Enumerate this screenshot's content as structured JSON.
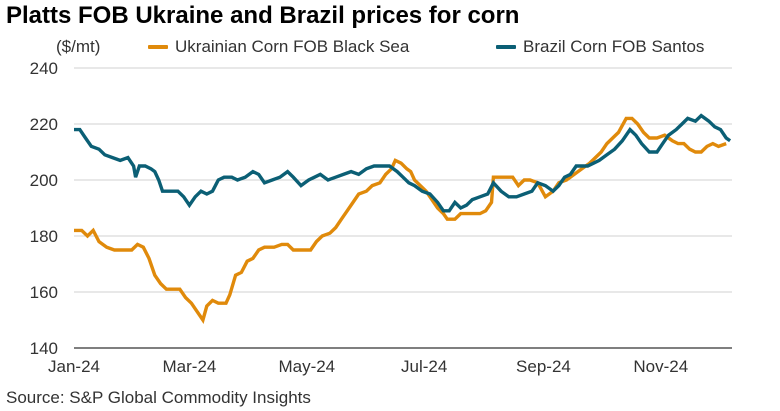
{
  "chart_data": {
    "type": "line",
    "title": "Platts FOB Ukraine and Brazil prices for corn",
    "ylabel": "($/mt)",
    "source": "Source: S&P Global Commodity Insights",
    "ylim": [
      140,
      240
    ],
    "yticks": [
      140,
      160,
      180,
      200,
      220,
      240
    ],
    "xlim": [
      "2024-01-01",
      "2024-12-08"
    ],
    "xticks": [
      {
        "date": "2024-01-01",
        "label": "Jan-24"
      },
      {
        "date": "2024-03-01",
        "label": "Mar-24"
      },
      {
        "date": "2024-05-01",
        "label": "May-24"
      },
      {
        "date": "2024-07-01",
        "label": "Jul-24"
      },
      {
        "date": "2024-09-01",
        "label": "Sep-24"
      },
      {
        "date": "2024-11-01",
        "label": "Nov-24"
      }
    ],
    "grid": "horizontal",
    "legend_position": "top",
    "series": [
      {
        "name": "Ukrainian Corn FOB Black Sea",
        "color": "#E08A0B",
        "points": [
          [
            "2024-01-01",
            182
          ],
          [
            "2024-01-05",
            182
          ],
          [
            "2024-01-08",
            180
          ],
          [
            "2024-01-11",
            182
          ],
          [
            "2024-01-14",
            178
          ],
          [
            "2024-01-18",
            176
          ],
          [
            "2024-01-22",
            175
          ],
          [
            "2024-01-27",
            175
          ],
          [
            "2024-01-31",
            175
          ],
          [
            "2024-02-03",
            177
          ],
          [
            "2024-02-06",
            176
          ],
          [
            "2024-02-09",
            172
          ],
          [
            "2024-02-12",
            166
          ],
          [
            "2024-02-15",
            163
          ],
          [
            "2024-02-18",
            161
          ],
          [
            "2024-02-22",
            161
          ],
          [
            "2024-02-25",
            161
          ],
          [
            "2024-02-28",
            158
          ],
          [
            "2024-03-02",
            156
          ],
          [
            "2024-03-05",
            153
          ],
          [
            "2024-03-08",
            150
          ],
          [
            "2024-03-10",
            155
          ],
          [
            "2024-03-13",
            157
          ],
          [
            "2024-03-16",
            156
          ],
          [
            "2024-03-20",
            156
          ],
          [
            "2024-03-22",
            159
          ],
          [
            "2024-03-25",
            166
          ],
          [
            "2024-03-28",
            167
          ],
          [
            "2024-03-31",
            171
          ],
          [
            "2024-04-03",
            172
          ],
          [
            "2024-04-06",
            175
          ],
          [
            "2024-04-09",
            176
          ],
          [
            "2024-04-14",
            176
          ],
          [
            "2024-04-18",
            177
          ],
          [
            "2024-04-21",
            177
          ],
          [
            "2024-04-24",
            175
          ],
          [
            "2024-04-28",
            175
          ],
          [
            "2024-05-03",
            175
          ],
          [
            "2024-05-06",
            178
          ],
          [
            "2024-05-09",
            180
          ],
          [
            "2024-05-13",
            181
          ],
          [
            "2024-05-16",
            183
          ],
          [
            "2024-05-19",
            186
          ],
          [
            "2024-05-22",
            189
          ],
          [
            "2024-05-25",
            192
          ],
          [
            "2024-05-28",
            195
          ],
          [
            "2024-06-01",
            196
          ],
          [
            "2024-06-04",
            198
          ],
          [
            "2024-06-08",
            199
          ],
          [
            "2024-06-11",
            202
          ],
          [
            "2024-06-14",
            204
          ],
          [
            "2024-06-16",
            207
          ],
          [
            "2024-06-19",
            206
          ],
          [
            "2024-06-22",
            204
          ],
          [
            "2024-06-24",
            203
          ],
          [
            "2024-06-26",
            200
          ],
          [
            "2024-06-29",
            198
          ],
          [
            "2024-07-02",
            196
          ],
          [
            "2024-07-05",
            193
          ],
          [
            "2024-07-08",
            190
          ],
          [
            "2024-07-11",
            188
          ],
          [
            "2024-07-13",
            186
          ],
          [
            "2024-07-17",
            186
          ],
          [
            "2024-07-20",
            188
          ],
          [
            "2024-07-25",
            188
          ],
          [
            "2024-07-30",
            188
          ],
          [
            "2024-08-02",
            189
          ],
          [
            "2024-08-05",
            192
          ],
          [
            "2024-08-06",
            201
          ],
          [
            "2024-08-11",
            201
          ],
          [
            "2024-08-16",
            201
          ],
          [
            "2024-08-19",
            198
          ],
          [
            "2024-08-22",
            200
          ],
          [
            "2024-08-25",
            200
          ],
          [
            "2024-08-29",
            199
          ],
          [
            "2024-09-02",
            194
          ],
          [
            "2024-09-06",
            196
          ],
          [
            "2024-09-09",
            199
          ],
          [
            "2024-09-13",
            200
          ],
          [
            "2024-09-17",
            202
          ],
          [
            "2024-09-21",
            204
          ],
          [
            "2024-09-25",
            206
          ],
          [
            "2024-09-28",
            208
          ],
          [
            "2024-10-01",
            210
          ],
          [
            "2024-10-04",
            213
          ],
          [
            "2024-10-07",
            215
          ],
          [
            "2024-10-10",
            217
          ],
          [
            "2024-10-14",
            222
          ],
          [
            "2024-10-17",
            222
          ],
          [
            "2024-10-20",
            220
          ],
          [
            "2024-10-23",
            217
          ],
          [
            "2024-10-26",
            215
          ],
          [
            "2024-10-30",
            215
          ],
          [
            "2024-11-03",
            216
          ],
          [
            "2024-11-07",
            214
          ],
          [
            "2024-11-10",
            213
          ],
          [
            "2024-11-13",
            213
          ],
          [
            "2024-11-16",
            211
          ],
          [
            "2024-11-19",
            210
          ],
          [
            "2024-11-22",
            210
          ],
          [
            "2024-11-25",
            212
          ],
          [
            "2024-11-28",
            213
          ],
          [
            "2024-12-01",
            212
          ],
          [
            "2024-12-05",
            213
          ]
        ]
      },
      {
        "name": "Brazil Corn FOB Santos",
        "color": "#0B5F75",
        "points": [
          [
            "2024-01-01",
            218
          ],
          [
            "2024-01-04",
            218
          ],
          [
            "2024-01-07",
            215
          ],
          [
            "2024-01-10",
            212
          ],
          [
            "2024-01-14",
            211
          ],
          [
            "2024-01-17",
            209
          ],
          [
            "2024-01-21",
            208
          ],
          [
            "2024-01-25",
            207
          ],
          [
            "2024-01-29",
            208
          ],
          [
            "2024-02-01",
            205
          ],
          [
            "2024-02-02",
            201
          ],
          [
            "2024-02-04",
            205
          ],
          [
            "2024-02-07",
            205
          ],
          [
            "2024-02-10",
            204
          ],
          [
            "2024-02-12",
            203
          ],
          [
            "2024-02-14",
            200
          ],
          [
            "2024-02-16",
            196
          ],
          [
            "2024-02-20",
            196
          ],
          [
            "2024-02-24",
            196
          ],
          [
            "2024-02-27",
            194
          ],
          [
            "2024-03-01",
            191
          ],
          [
            "2024-03-04",
            194
          ],
          [
            "2024-03-07",
            196
          ],
          [
            "2024-03-10",
            195
          ],
          [
            "2024-03-13",
            196
          ],
          [
            "2024-03-16",
            200
          ],
          [
            "2024-03-19",
            201
          ],
          [
            "2024-03-23",
            201
          ],
          [
            "2024-03-26",
            200
          ],
          [
            "2024-03-30",
            201
          ],
          [
            "2024-04-03",
            203
          ],
          [
            "2024-04-06",
            202
          ],
          [
            "2024-04-09",
            199
          ],
          [
            "2024-04-13",
            200
          ],
          [
            "2024-04-17",
            201
          ],
          [
            "2024-04-21",
            203
          ],
          [
            "2024-04-24",
            201
          ],
          [
            "2024-04-28",
            198
          ],
          [
            "2024-05-02",
            200
          ],
          [
            "2024-05-05",
            201
          ],
          [
            "2024-05-08",
            202
          ],
          [
            "2024-05-12",
            200
          ],
          [
            "2024-05-16",
            201
          ],
          [
            "2024-05-20",
            202
          ],
          [
            "2024-05-24",
            203
          ],
          [
            "2024-05-28",
            202
          ],
          [
            "2024-06-01",
            204
          ],
          [
            "2024-06-05",
            205
          ],
          [
            "2024-06-10",
            205
          ],
          [
            "2024-06-13",
            205
          ],
          [
            "2024-06-17",
            203
          ],
          [
            "2024-06-20",
            201
          ],
          [
            "2024-06-23",
            199
          ],
          [
            "2024-06-26",
            198
          ],
          [
            "2024-06-30",
            196
          ],
          [
            "2024-07-04",
            195
          ],
          [
            "2024-07-08",
            192
          ],
          [
            "2024-07-11",
            189
          ],
          [
            "2024-07-14",
            189
          ],
          [
            "2024-07-17",
            192
          ],
          [
            "2024-07-20",
            190
          ],
          [
            "2024-07-23",
            191
          ],
          [
            "2024-07-26",
            193
          ],
          [
            "2024-07-30",
            194
          ],
          [
            "2024-08-03",
            195
          ],
          [
            "2024-08-06",
            199
          ],
          [
            "2024-08-10",
            196
          ],
          [
            "2024-08-14",
            194
          ],
          [
            "2024-08-18",
            194
          ],
          [
            "2024-08-22",
            195
          ],
          [
            "2024-08-26",
            196
          ],
          [
            "2024-08-29",
            199
          ],
          [
            "2024-09-02",
            198
          ],
          [
            "2024-09-06",
            196
          ],
          [
            "2024-09-09",
            198
          ],
          [
            "2024-09-12",
            201
          ],
          [
            "2024-09-15",
            202
          ],
          [
            "2024-09-18",
            205
          ],
          [
            "2024-09-21",
            205
          ],
          [
            "2024-09-24",
            205
          ],
          [
            "2024-09-27",
            206
          ],
          [
            "2024-09-30",
            207
          ],
          [
            "2024-10-04",
            209
          ],
          [
            "2024-10-08",
            211
          ],
          [
            "2024-10-12",
            214
          ],
          [
            "2024-10-16",
            218
          ],
          [
            "2024-10-19",
            216
          ],
          [
            "2024-10-22",
            213
          ],
          [
            "2024-10-26",
            210
          ],
          [
            "2024-10-30",
            210
          ],
          [
            "2024-11-02",
            213
          ],
          [
            "2024-11-05",
            216
          ],
          [
            "2024-11-09",
            218
          ],
          [
            "2024-11-12",
            220
          ],
          [
            "2024-11-15",
            222
          ],
          [
            "2024-11-19",
            221
          ],
          [
            "2024-11-22",
            223
          ],
          [
            "2024-11-26",
            221
          ],
          [
            "2024-11-29",
            219
          ],
          [
            "2024-12-02",
            218
          ],
          [
            "2024-12-05",
            215
          ],
          [
            "2024-12-07",
            214
          ]
        ]
      }
    ]
  }
}
